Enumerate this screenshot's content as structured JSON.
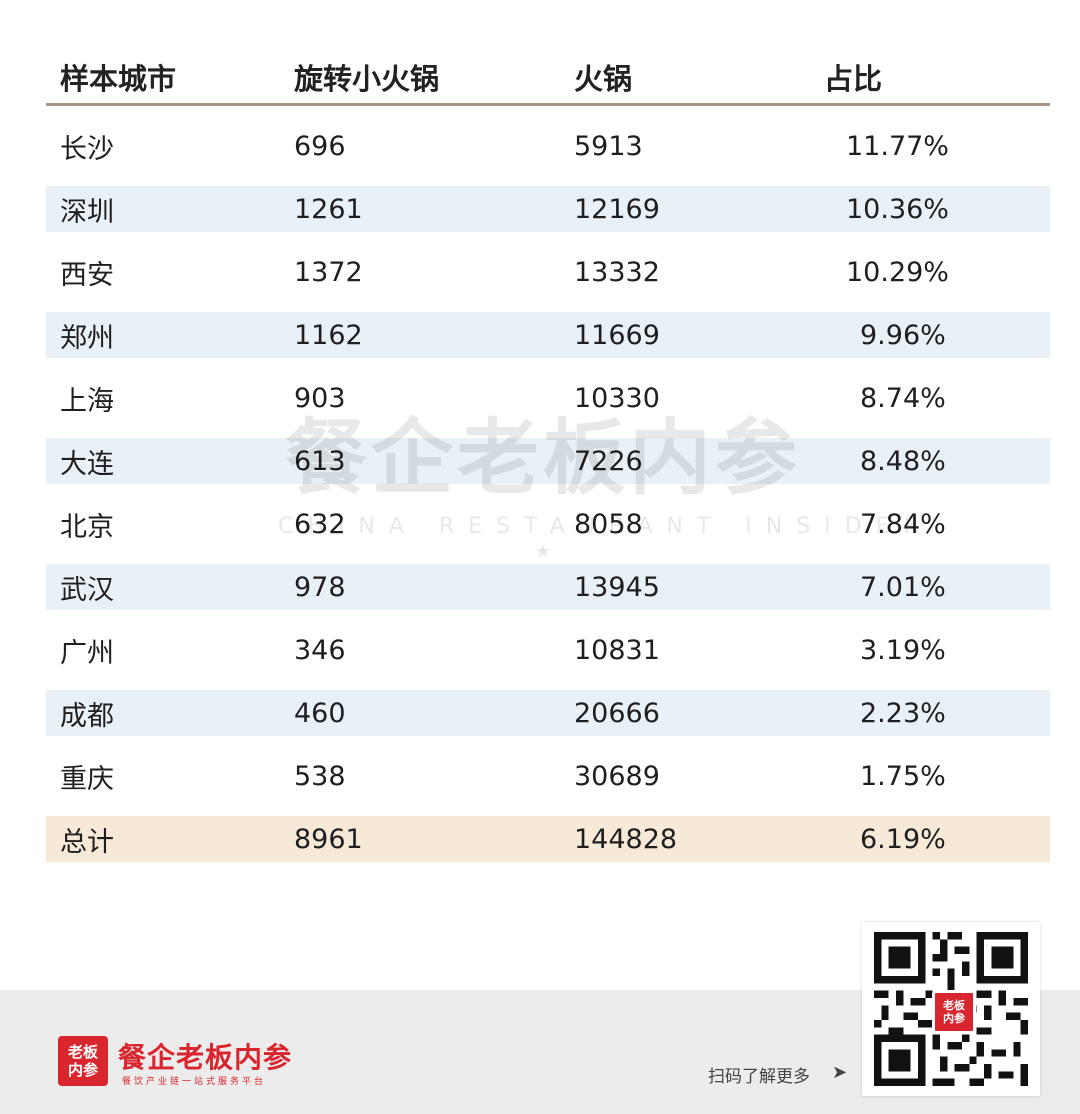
{
  "table": {
    "headers": [
      "样本城市",
      "旋转小火锅",
      "火锅",
      "占比"
    ],
    "rows": [
      {
        "city": "长沙",
        "mini": "696",
        "hotpot": "5913",
        "ratio": "11.77%"
      },
      {
        "city": "深圳",
        "mini": "1261",
        "hotpot": "12169",
        "ratio": "10.36%"
      },
      {
        "city": "西安",
        "mini": "1372",
        "hotpot": "13332",
        "ratio": "10.29%"
      },
      {
        "city": "郑州",
        "mini": "1162",
        "hotpot": "11669",
        "ratio": "9.96%"
      },
      {
        "city": "上海",
        "mini": "903",
        "hotpot": "10330",
        "ratio": "8.74%"
      },
      {
        "city": "大连",
        "mini": "613",
        "hotpot": "7226",
        "ratio": "8.48%"
      },
      {
        "city": "北京",
        "mini": "632",
        "hotpot": "8058",
        "ratio": "7.84%"
      },
      {
        "city": "武汉",
        "mini": "978",
        "hotpot": "13945",
        "ratio": "7.01%"
      },
      {
        "city": "广州",
        "mini": "346",
        "hotpot": "10831",
        "ratio": "3.19%"
      },
      {
        "city": "成都",
        "mini": "460",
        "hotpot": "20666",
        "ratio": "2.23%"
      },
      {
        "city": "重庆",
        "mini": "538",
        "hotpot": "30689",
        "ratio": "1.75%"
      }
    ],
    "total": {
      "city": "总计",
      "mini": "8961",
      "hotpot": "144828",
      "ratio": "6.19%"
    }
  },
  "watermark": {
    "title": "餐企老板内参",
    "subtitle": "CHINA RESTAURANT INSIDER",
    "star": "★"
  },
  "footer": {
    "logo_line1": "老板",
    "logo_line2": "内参",
    "brand_name": "餐企老板内参",
    "slogan": "餐饮产业链一站式服务平台",
    "scan_text": "扫码了解更多",
    "scan_arrow": "➤"
  },
  "colors": {
    "brand_red": "#d9262e",
    "stripe_blue": "#e8f1f8",
    "total_beige": "#f6e9d8",
    "header_rule": "#a89585"
  }
}
